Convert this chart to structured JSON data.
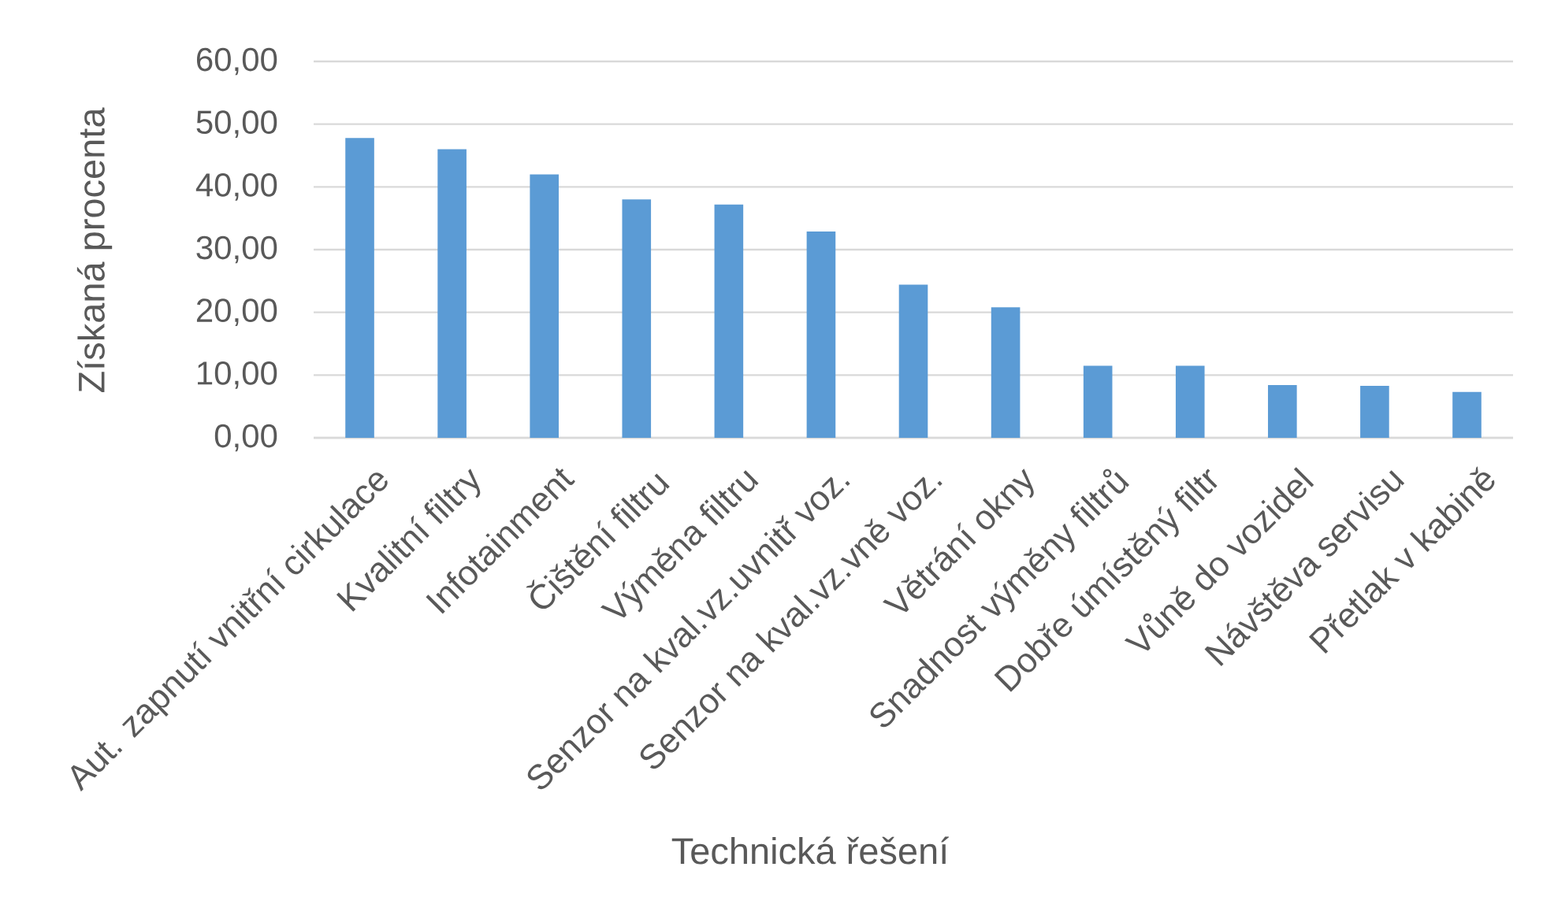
{
  "chart_data": {
    "type": "bar",
    "xlabel": "Technická řešení",
    "ylabel": "Získaná procenta",
    "categories": [
      "Aut. zapnutí vnitřní cirkulace",
      "Kvalitní filtry",
      "Infotainment",
      "Čištění filtru",
      "Výměna filtru",
      "Senzor na kval.vz.uvnitř voz.",
      "Senzor na kval.vz.vně voz.",
      "Větrání okny",
      "Snadnost výměny filtrů",
      "Dobře úmístěný filtr",
      "Vůně do vozidel",
      "Návštěva servisu",
      "Přetlak v kabině"
    ],
    "values": [
      47.8,
      46.0,
      42.0,
      38.0,
      37.2,
      32.9,
      24.4,
      20.8,
      11.5,
      11.5,
      8.4,
      8.3,
      7.3
    ],
    "color": "#5b9bd5",
    "ylim": [
      0,
      60
    ],
    "yticks": [
      {
        "value": 0,
        "label": "0,00"
      },
      {
        "value": 10,
        "label": "10,00"
      },
      {
        "value": 20,
        "label": "20,00"
      },
      {
        "value": 30,
        "label": "30,00"
      },
      {
        "value": 40,
        "label": "40,00"
      },
      {
        "value": 50,
        "label": "50,00"
      },
      {
        "value": 60,
        "label": "60,00"
      }
    ],
    "grid": "y"
  }
}
